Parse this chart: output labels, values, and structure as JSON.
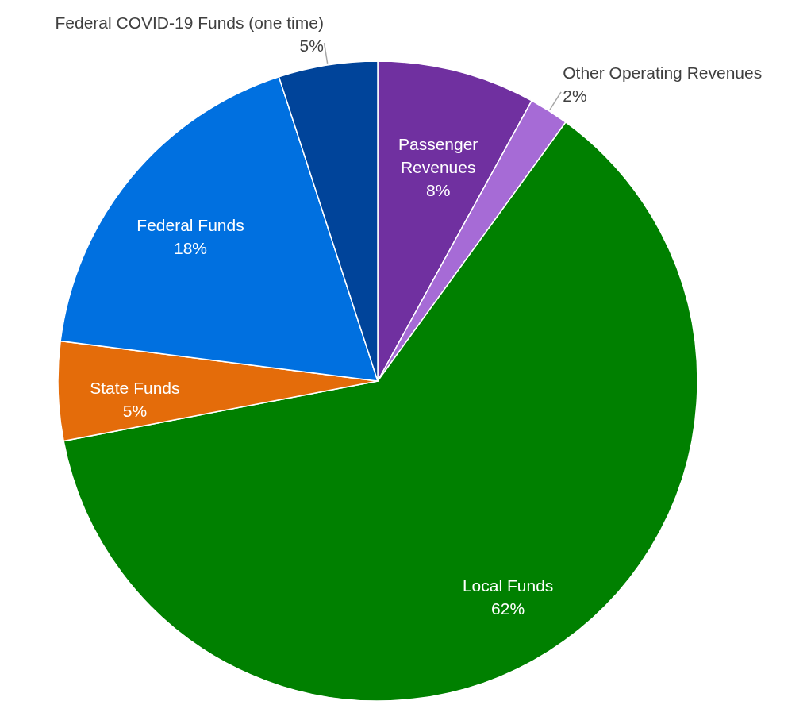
{
  "chart_data": {
    "type": "pie",
    "categories": [
      "Passenger Revenues",
      "Other Operating Revenues",
      "Local Funds",
      "State Funds",
      "Federal Funds",
      "Federal COVID-19 Funds (one time)"
    ],
    "values": [
      8,
      2,
      62,
      5,
      18,
      5
    ],
    "colors": [
      "#7030a0",
      "#a66bd6",
      "#008000",
      "#e46c0a",
      "#0070e0",
      "#00449a"
    ],
    "value_labels": [
      "8%",
      "2%",
      "62%",
      "5%",
      "18%",
      "5%"
    ]
  }
}
